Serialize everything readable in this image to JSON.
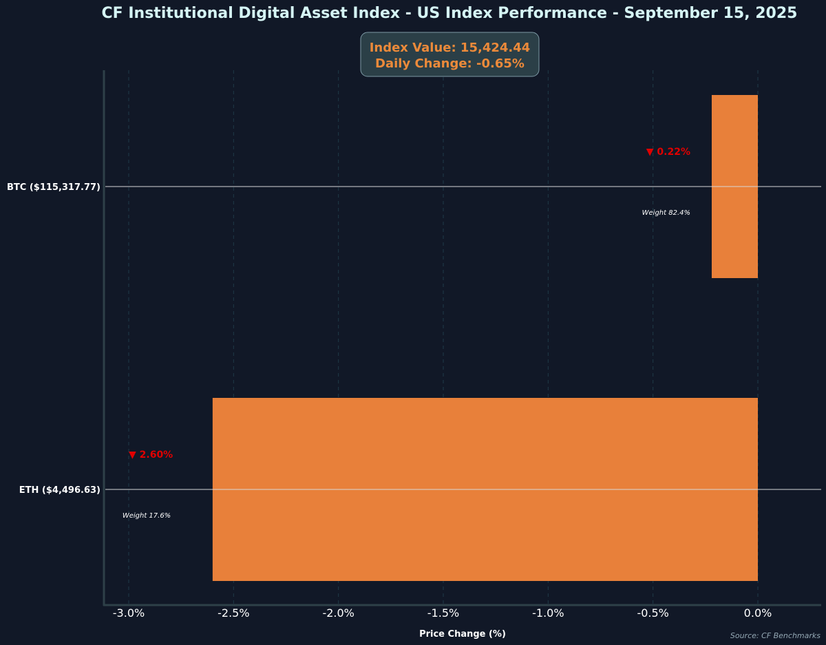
{
  "chart_data": {
    "type": "bar",
    "orientation": "horizontal",
    "title": "CF Institutional Digital Asset Index - US Index Performance - September 15, 2025",
    "info_box": {
      "line1": "Index Value: 15,424.44",
      "line2": "Daily Change: -0.65%"
    },
    "xlabel": "Price Change (%)",
    "xlim": [
      -3.12,
      0.3
    ],
    "xticks": [
      -3.0,
      -2.5,
      -2.0,
      -1.5,
      -1.0,
      -0.5,
      0.0
    ],
    "xtick_labels": [
      "-3.0%",
      "-2.5%",
      "-2.0%",
      "-1.5%",
      "-1.0%",
      "-0.5%",
      "0.0%"
    ],
    "categories": [
      "BTC ($115,317.77)",
      "ETH ($4,496.63)"
    ],
    "values": [
      -0.22,
      -2.6
    ],
    "change_labels": [
      "▼ 0.22%",
      "▼ 2.60%"
    ],
    "weight_labels": [
      "Weight 82.4%",
      "Weight 17.6%"
    ],
    "bar_color": "#e8803a",
    "background_color": "#111827",
    "grid": "vertical dashed",
    "source": "Source: CF Benchmarks"
  }
}
